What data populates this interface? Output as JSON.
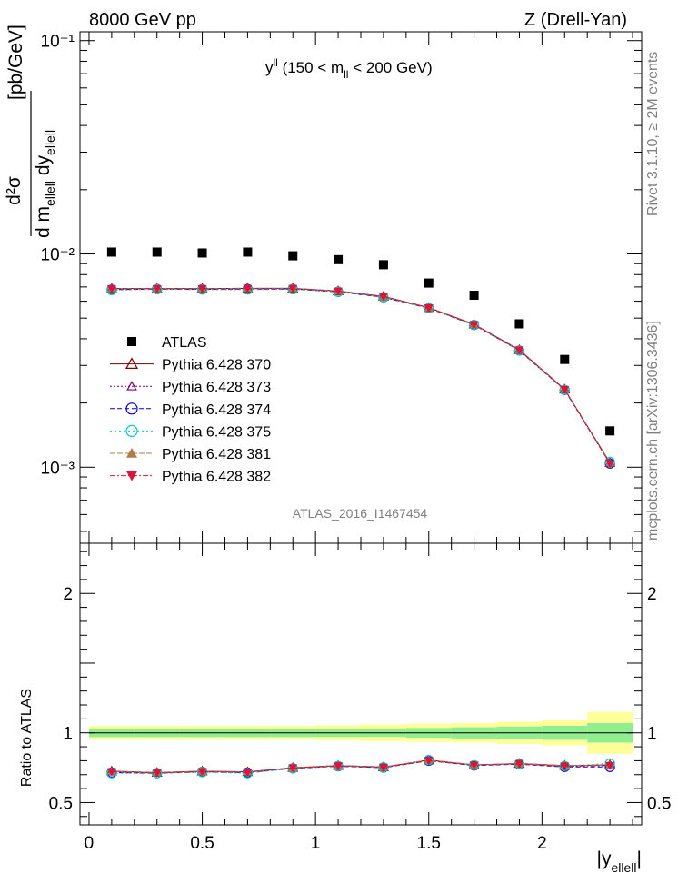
{
  "header": {
    "left": "8000 GeV pp",
    "right": "Z (Drell-Yan)"
  },
  "side": {
    "rivet": "Rivet 3.1.10, ≥ 2M events",
    "source": "mcplots.cern.ch [arXiv:1306.3436]"
  },
  "watermark": "ATLAS_2016_I1467454",
  "panel_title": {
    "main": "y",
    "main_sup": "ll",
    "range": " (150 < m",
    "range_sub": "ll",
    "range_end": " < 200 GeV)"
  },
  "ylabel_top": {
    "num": "d²σ",
    "den_a": "d m",
    "den_a_sub": "ellell",
    "den_b": " dy",
    "den_b_sub": "ellell",
    "unit": "[pb/GeV]"
  },
  "ylabel_bottom": "Ratio to ATLAS",
  "xlabel": {
    "main": "|y",
    "sub": "ellell",
    "end": "|"
  },
  "colors": {
    "atlas": "#000000",
    "p370": "#800000",
    "p373": "#800080",
    "p374": "#0000cc",
    "p375": "#00cccc",
    "p381": "#b07a4a",
    "p382": "#dc143c",
    "band_inner": "#90ee90",
    "band_outer": "#ffff99"
  },
  "chart_data": [
    {
      "type": "scatter",
      "panel": "main",
      "yscale": "log",
      "xlim": [
        -0.04,
        2.44
      ],
      "ylim": [
        0.00044,
        0.11
      ],
      "x_ticks": [
        0,
        0.5,
        1,
        1.5,
        2
      ],
      "y_tick_labels": [
        "10⁻³",
        "10⁻²",
        "10⁻¹"
      ],
      "x": [
        0.1,
        0.3,
        0.5,
        0.7,
        0.9,
        1.1,
        1.3,
        1.5,
        1.7,
        1.9,
        2.1,
        2.3
      ],
      "series": [
        {
          "name": "ATLAS",
          "marker": "square",
          "values": [
            0.0102,
            0.0102,
            0.0101,
            0.0102,
            0.0098,
            0.0094,
            0.0089,
            0.0073,
            0.0064,
            0.0047,
            0.0032,
            0.00148
          ]
        },
        {
          "name": "Pythia 6.428 370",
          "marker": "triangle-open",
          "values": [
            0.00688,
            0.00688,
            0.00688,
            0.0069,
            0.0069,
            0.0067,
            0.00632,
            0.0056,
            0.00468,
            0.00355,
            0.00232,
            0.00105
          ]
        },
        {
          "name": "Pythia 6.428 373",
          "marker": "triangle-open-small",
          "values": [
            0.00686,
            0.00686,
            0.00686,
            0.00688,
            0.00688,
            0.00668,
            0.0063,
            0.00558,
            0.00466,
            0.00354,
            0.00231,
            0.00105
          ]
        },
        {
          "name": "Pythia 6.428 374",
          "marker": "circle-open",
          "values": [
            0.0068,
            0.00684,
            0.00682,
            0.00684,
            0.00684,
            0.00664,
            0.00626,
            0.00556,
            0.00464,
            0.00352,
            0.0023,
            0.00104
          ]
        },
        {
          "name": "Pythia 6.428 375",
          "marker": "circle-open",
          "values": [
            0.00676,
            0.00682,
            0.0068,
            0.0068,
            0.00682,
            0.00664,
            0.00626,
            0.00556,
            0.00465,
            0.00352,
            0.0023,
            0.00106
          ]
        },
        {
          "name": "Pythia 6.428 381",
          "marker": "triangle-filled",
          "values": [
            0.00688,
            0.00688,
            0.00688,
            0.0069,
            0.0069,
            0.0067,
            0.0063,
            0.0056,
            0.00468,
            0.00356,
            0.00232,
            0.00105
          ]
        },
        {
          "name": "Pythia 6.428 382",
          "marker": "triangle-down-filled",
          "values": [
            0.00686,
            0.00686,
            0.00686,
            0.00688,
            0.00688,
            0.00668,
            0.0063,
            0.00558,
            0.00466,
            0.00354,
            0.00231,
            0.00104
          ]
        }
      ]
    },
    {
      "type": "line",
      "panel": "ratio",
      "xlim": [
        -0.04,
        2.44
      ],
      "ylim": [
        0.34,
        2.36
      ],
      "y_ticks": [
        0.5,
        1,
        1.5,
        2
      ],
      "y_tick_labels": [
        "0.5",
        "1",
        "",
        "2"
      ],
      "x": [
        0.1,
        0.3,
        0.5,
        0.7,
        0.9,
        1.1,
        1.3,
        1.5,
        1.7,
        1.9,
        2.1,
        2.3
      ],
      "bins": [
        [
          0.0,
          0.2
        ],
        [
          0.2,
          0.4
        ],
        [
          0.4,
          0.6
        ],
        [
          0.6,
          0.8
        ],
        [
          0.8,
          1.0
        ],
        [
          1.0,
          1.2
        ],
        [
          1.2,
          1.4
        ],
        [
          1.4,
          1.6
        ],
        [
          1.6,
          1.8
        ],
        [
          1.8,
          2.0
        ],
        [
          2.0,
          2.2
        ],
        [
          2.2,
          2.4
        ]
      ],
      "band_inner": [
        0.03,
        0.03,
        0.03,
        0.03,
        0.03,
        0.03,
        0.03,
        0.035,
        0.04,
        0.045,
        0.05,
        0.07
      ],
      "band_outer": [
        0.05,
        0.05,
        0.05,
        0.05,
        0.05,
        0.055,
        0.06,
        0.065,
        0.07,
        0.08,
        0.09,
        0.15
      ],
      "series": [
        {
          "name": "Pythia 6.428 370",
          "values": [
            0.725,
            0.715,
            0.725,
            0.72,
            0.75,
            0.765,
            0.755,
            0.805,
            0.77,
            0.78,
            0.765,
            0.77
          ]
        },
        {
          "name": "Pythia 6.428 373",
          "values": [
            0.72,
            0.712,
            0.722,
            0.718,
            0.748,
            0.762,
            0.752,
            0.8,
            0.768,
            0.777,
            0.76,
            0.765
          ]
        },
        {
          "name": "Pythia 6.428 374",
          "values": [
            0.715,
            0.71,
            0.72,
            0.715,
            0.745,
            0.76,
            0.75,
            0.8,
            0.765,
            0.775,
            0.755,
            0.755
          ]
        },
        {
          "name": "Pythia 6.428 375",
          "values": [
            0.71,
            0.71,
            0.718,
            0.71,
            0.745,
            0.762,
            0.752,
            0.805,
            0.768,
            0.778,
            0.762,
            0.78
          ]
        },
        {
          "name": "Pythia 6.428 381",
          "values": [
            0.725,
            0.715,
            0.725,
            0.72,
            0.75,
            0.765,
            0.755,
            0.805,
            0.77,
            0.78,
            0.765,
            0.77
          ]
        },
        {
          "name": "Pythia 6.428 382",
          "values": [
            0.72,
            0.712,
            0.722,
            0.718,
            0.748,
            0.762,
            0.752,
            0.8,
            0.768,
            0.777,
            0.76,
            0.765
          ]
        }
      ]
    }
  ]
}
